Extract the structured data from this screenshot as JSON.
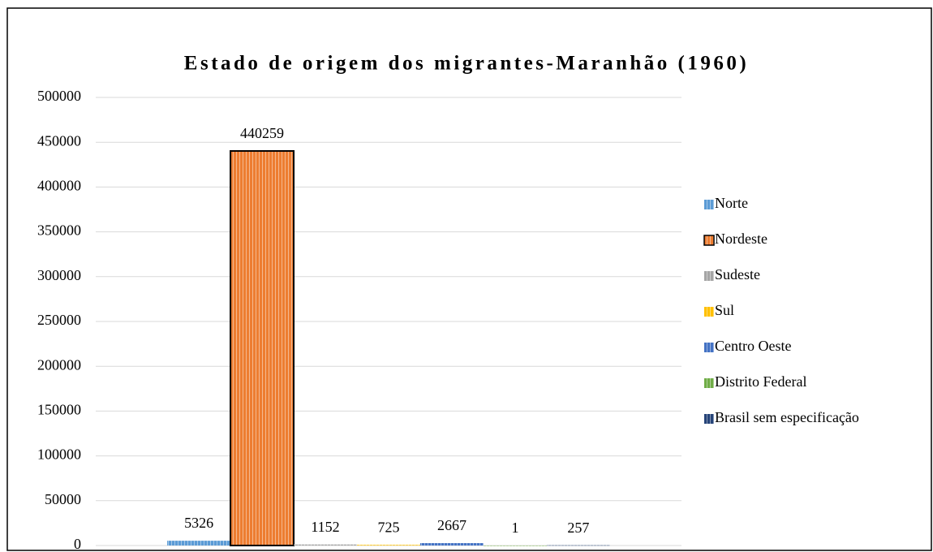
{
  "chart_data": {
    "type": "bar",
    "title": "Estado de origem dos migrantes-Maranhão (1960)",
    "categories": [
      null
    ],
    "series": [
      {
        "name": "Norte",
        "color": "#5b9bd5",
        "values": [
          5326
        ]
      },
      {
        "name": "Nordeste",
        "color": "#ed7d31",
        "edgecolor": "#000000",
        "values": [
          440259
        ]
      },
      {
        "name": "Sudeste",
        "color": "#a5a5a5",
        "values": [
          1152
        ]
      },
      {
        "name": "Sul",
        "color": "#ffc000",
        "values": [
          725
        ]
      },
      {
        "name": "Centro Oeste",
        "color": "#4472c4",
        "values": [
          2667
        ]
      },
      {
        "name": "Distrito Federal",
        "color": "#70ad47",
        "values": [
          1
        ]
      },
      {
        "name": "Brasil sem especificação",
        "color": "#264478",
        "values": [
          257
        ]
      }
    ],
    "ylim": [
      0,
      500000
    ],
    "yticks": [
      0,
      50000,
      100000,
      150000,
      200000,
      250000,
      300000,
      350000,
      400000,
      450000,
      500000
    ],
    "grid": true,
    "legend": "right",
    "data_labels": true
  }
}
